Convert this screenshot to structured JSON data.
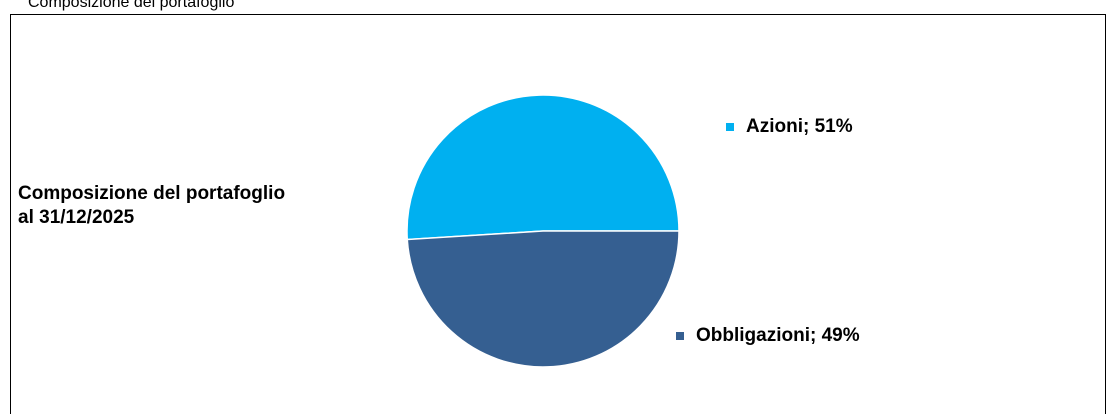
{
  "caption": "Composizione del portafoglio",
  "chart_data": {
    "type": "pie",
    "title_lines": [
      "Composizione del portafoglio",
      "al 31/12/2025"
    ],
    "slices": [
      {
        "label": "Azioni; 51%",
        "value": 51,
        "color": "#00b0f0"
      },
      {
        "label": "Obbligazioni; 49%",
        "value": 49,
        "color": "#355f91"
      }
    ],
    "slice_border_color": "#ffffff"
  }
}
